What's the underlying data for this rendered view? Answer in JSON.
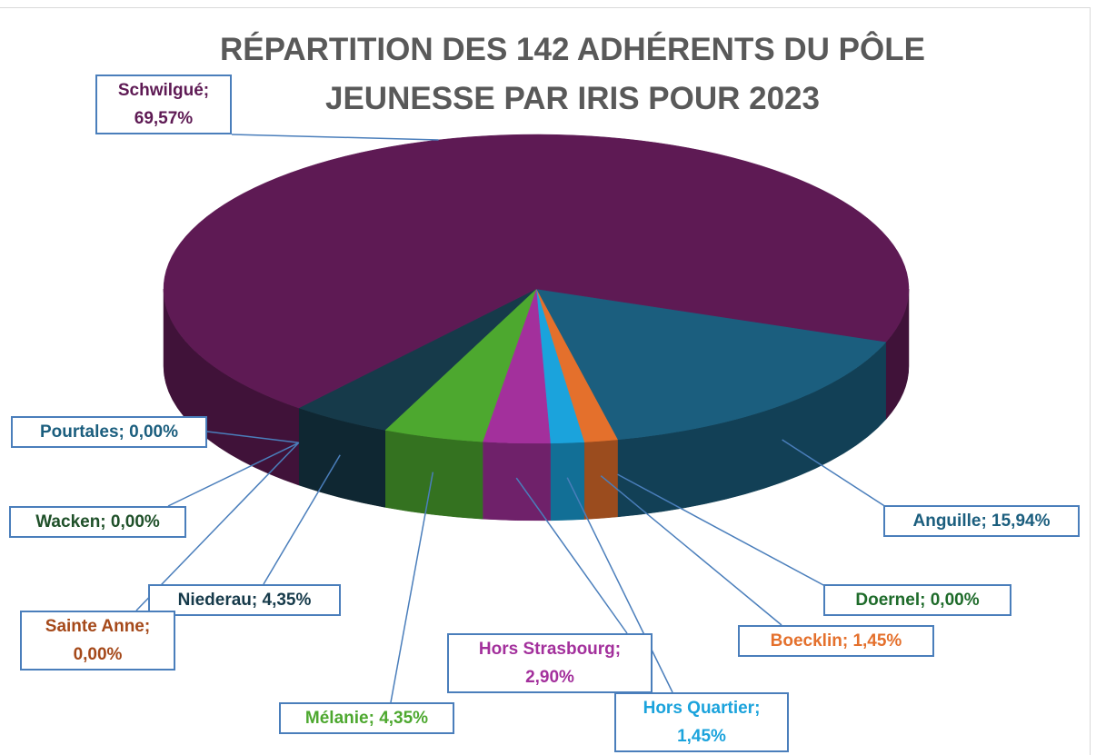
{
  "chart_data": {
    "type": "pie3d",
    "title": "RÉPARTITION DES 142 ADHÉRENTS DU PÔLE JEUNESSE PAR IRIS POUR 2023",
    "values": [
      15.94,
      0,
      1.45,
      1.45,
      2.9,
      4.35,
      4.35,
      0,
      0,
      0,
      69.57
    ],
    "value_labels": [
      "Anguille; 15,94%",
      "Doernel; 0,00%",
      "Boecklin; 1,45%",
      "Hors Quartier; 1,45%",
      "Hors Strasbourg; 2,90%",
      "Mélanie; 4,35%",
      "Niederau; 4,35%",
      "Sainte Anne; 0,00%",
      "Wacken; 0,00%",
      "Pourtales; 0,00%",
      "Schwilgué; 69,57%"
    ],
    "colors": [
      "#1b5e7e",
      "#1e6b2a",
      "#e4702c",
      "#1ba3dc",
      "#a3309c",
      "#4da82f",
      "#163a4a",
      "#a5491a",
      "#1f5029",
      "#1b5e7e",
      "#5e1a54"
    ]
  }
}
